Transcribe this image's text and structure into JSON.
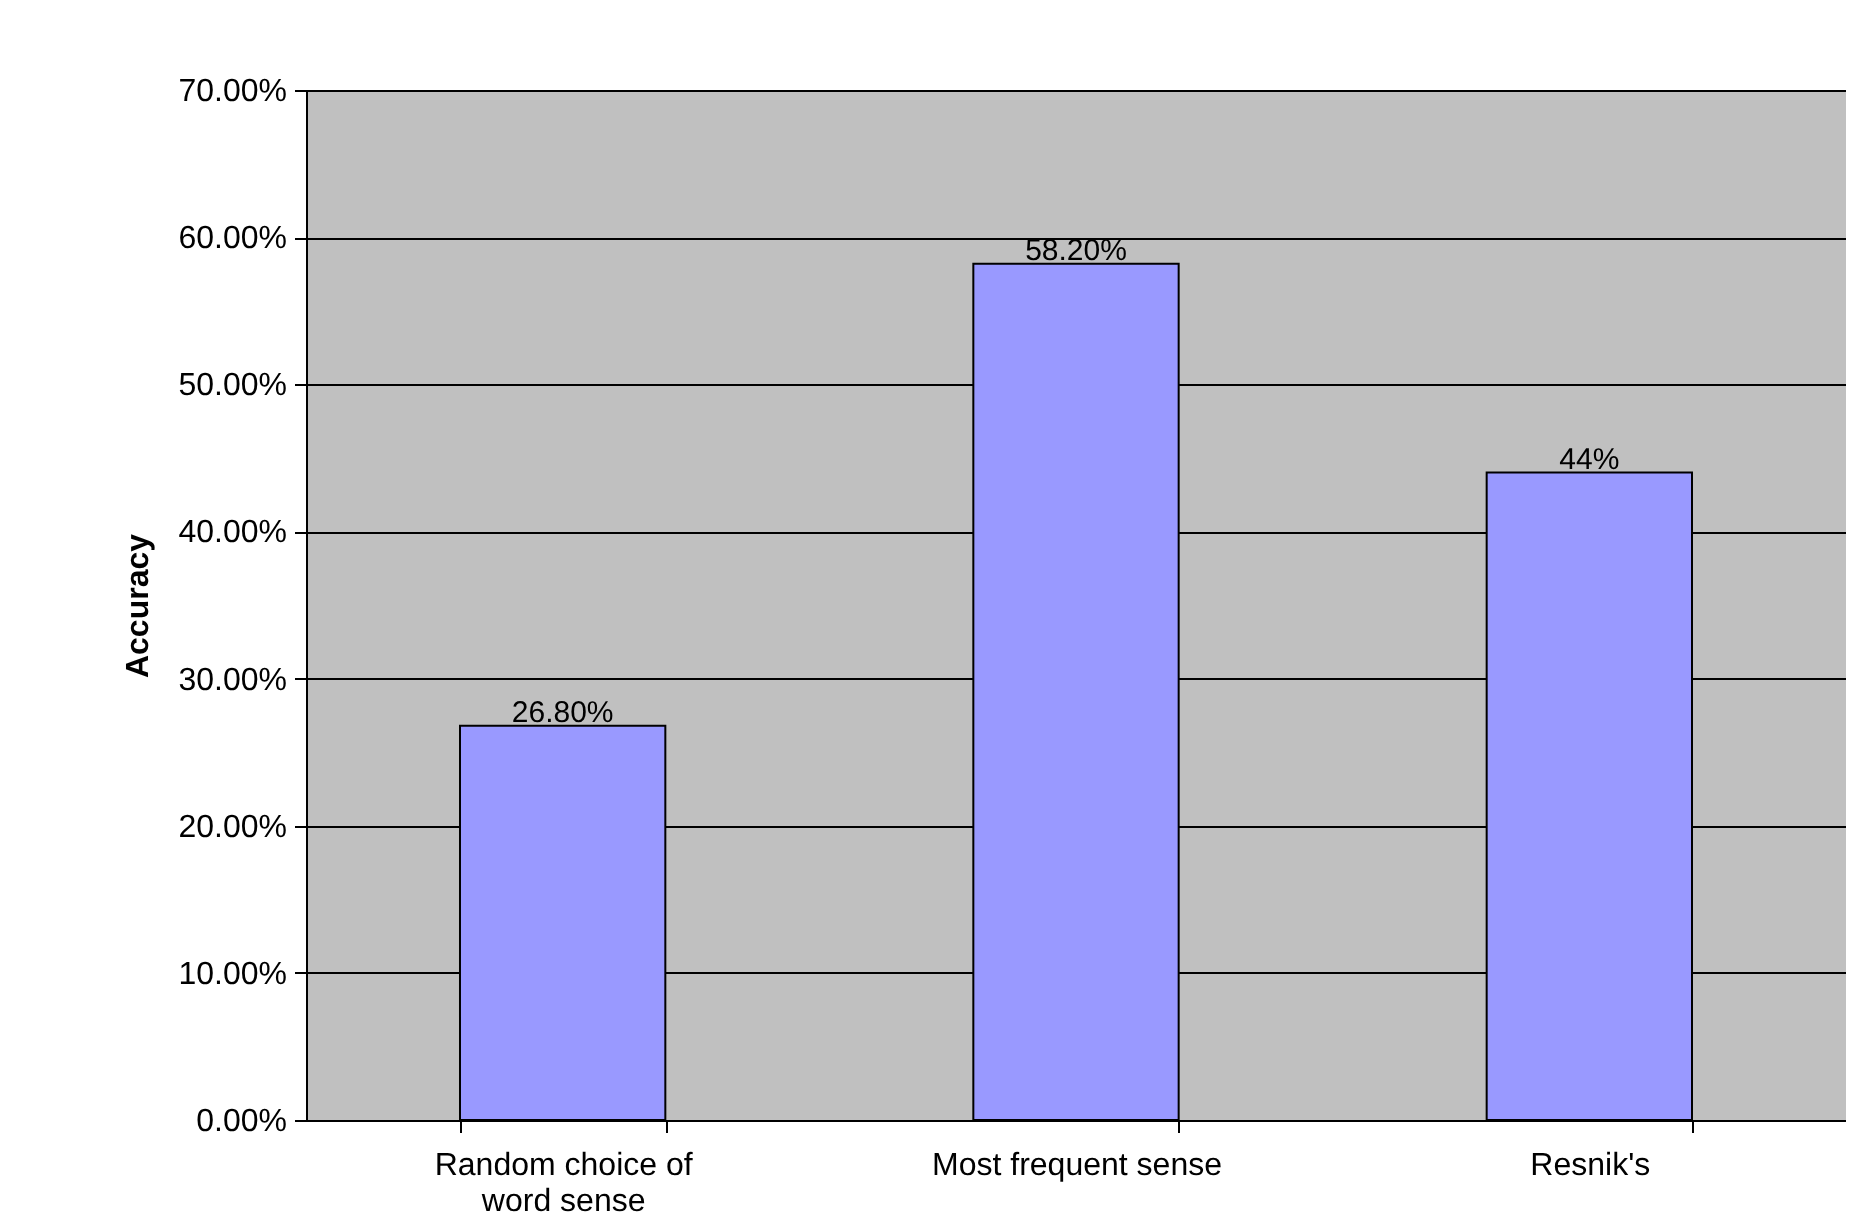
{
  "chart_data": {
    "type": "bar",
    "ylabel": "Accuracy",
    "categories": [
      "Random choice of word sense",
      "Most frequent sense",
      "Resnik's"
    ],
    "values": [
      26.8,
      58.2,
      44
    ],
    "value_labels": [
      "26.80%",
      "58.20%",
      "44%"
    ],
    "color": "#9999ff",
    "ylim": [
      0,
      70
    ],
    "yticks": [
      {
        "value": 0,
        "label": "0.00%"
      },
      {
        "value": 10,
        "label": "10.00%"
      },
      {
        "value": 20,
        "label": "20.00%"
      },
      {
        "value": 30,
        "label": "30.00%"
      },
      {
        "value": 40,
        "label": "40.00%"
      },
      {
        "value": 50,
        "label": "50.00%"
      },
      {
        "value": 60,
        "label": "60.00%"
      },
      {
        "value": 70,
        "label": "70.00%"
      }
    ],
    "grid": "y"
  }
}
